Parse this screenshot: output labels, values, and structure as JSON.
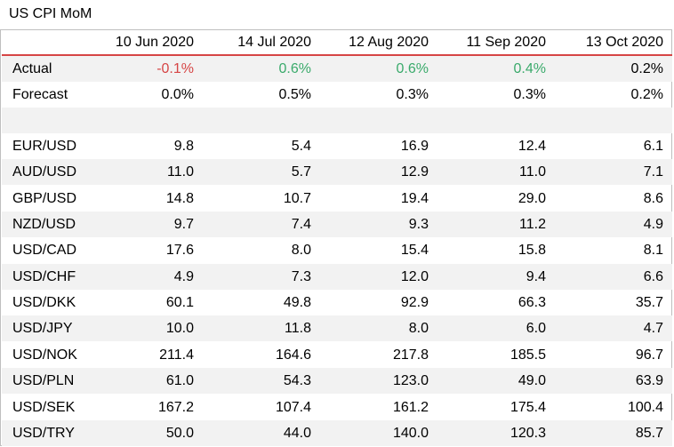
{
  "title": "US CPI MoM",
  "dates": [
    "10 Jun 2020",
    "14 Jul 2020",
    "12 Aug 2020",
    "11 Sep 2020",
    "13 Oct 2020"
  ],
  "actual": {
    "label": "Actual",
    "values": [
      "-0.1%",
      "0.6%",
      "0.6%",
      "0.4%",
      "0.2%"
    ],
    "colors": [
      "#d64545",
      "#3aaa6b",
      "#3aaa6b",
      "#3aaa6b",
      "#000000"
    ]
  },
  "forecast": {
    "label": "Forecast",
    "values": [
      "0.0%",
      "0.5%",
      "0.3%",
      "0.3%",
      "0.2%"
    ]
  },
  "pairs": [
    {
      "label": "EUR/USD",
      "values": [
        "9.8",
        "5.4",
        "16.9",
        "12.4",
        "6.1"
      ]
    },
    {
      "label": "AUD/USD",
      "values": [
        "11.0",
        "5.7",
        "12.9",
        "11.0",
        "7.1"
      ]
    },
    {
      "label": "GBP/USD",
      "values": [
        "14.8",
        "10.7",
        "19.4",
        "29.0",
        "8.6"
      ]
    },
    {
      "label": "NZD/USD",
      "values": [
        "9.7",
        "7.4",
        "9.3",
        "11.2",
        "4.9"
      ]
    },
    {
      "label": "USD/CAD",
      "values": [
        "17.6",
        "8.0",
        "15.4",
        "15.8",
        "8.1"
      ]
    },
    {
      "label": "USD/CHF",
      "values": [
        "4.9",
        "7.3",
        "12.0",
        "9.4",
        "6.6"
      ]
    },
    {
      "label": "USD/DKK",
      "values": [
        "60.1",
        "49.8",
        "92.9",
        "66.3",
        "35.7"
      ]
    },
    {
      "label": "USD/JPY",
      "values": [
        "10.0",
        "11.8",
        "8.0",
        "6.0",
        "4.7"
      ]
    },
    {
      "label": "USD/NOK",
      "values": [
        "211.4",
        "164.6",
        "217.8",
        "185.5",
        "96.7"
      ]
    },
    {
      "label": "USD/PLN",
      "values": [
        "61.0",
        "54.3",
        "123.0",
        "49.0",
        "63.9"
      ]
    },
    {
      "label": "USD/SEK",
      "values": [
        "167.2",
        "107.4",
        "161.2",
        "175.4",
        "100.4"
      ]
    },
    {
      "label": "USD/TRY",
      "values": [
        "50.0",
        "44.0",
        "140.0",
        "120.3",
        "85.7"
      ]
    }
  ]
}
